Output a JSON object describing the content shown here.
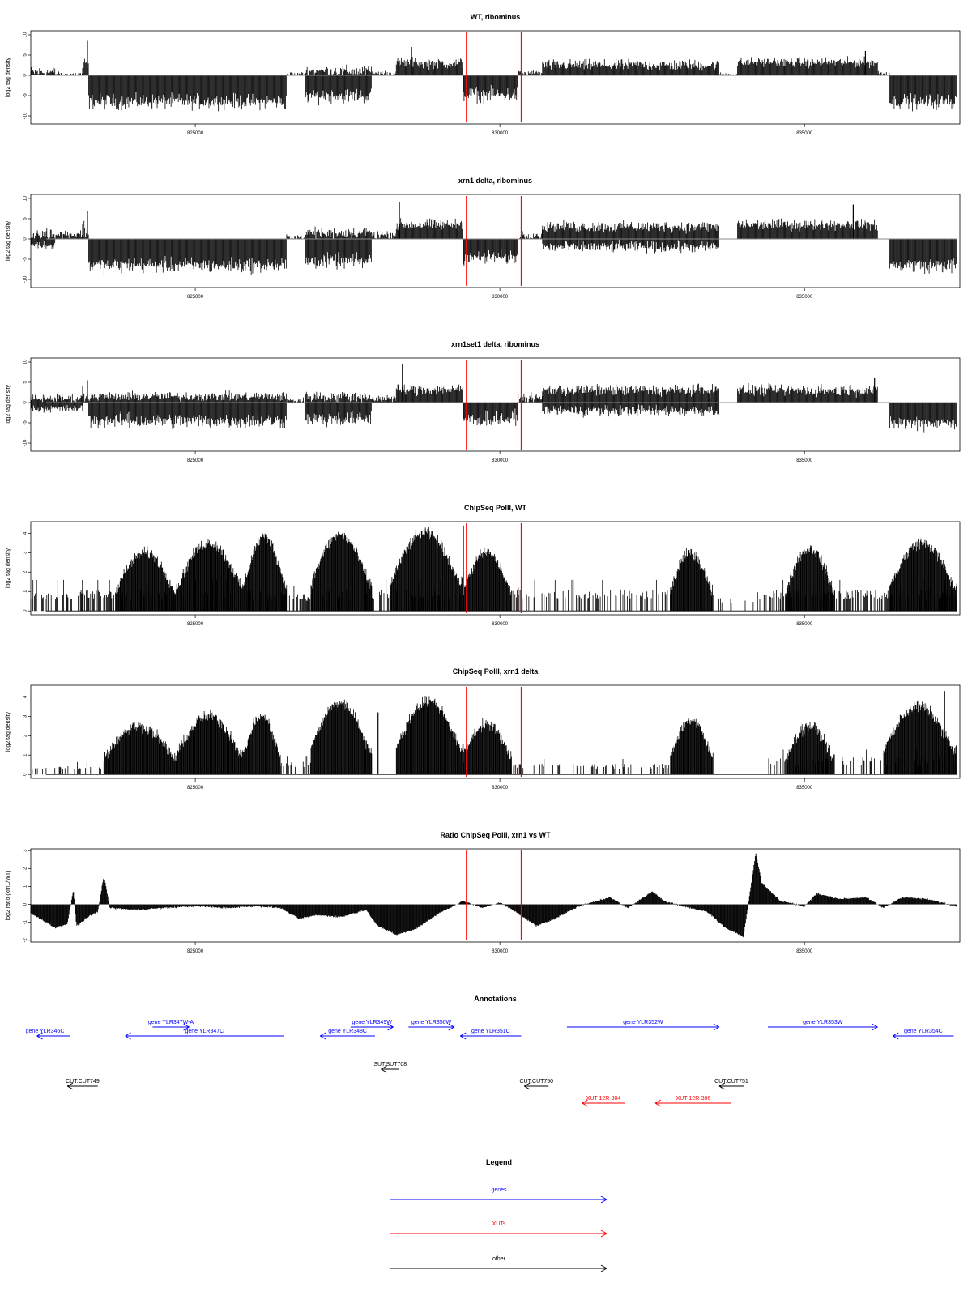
{
  "chart_data": [
    {
      "type": "bar",
      "title": "WT, ribominus",
      "ylabel": "log2 tag density",
      "xlabel": "",
      "xlim": [
        822300,
        837550
      ],
      "ylim": [
        -12,
        11
      ],
      "yticks": [
        -10,
        -5,
        0,
        5,
        10
      ],
      "xticks": [
        825000,
        830000,
        835000
      ],
      "mode": "signed",
      "vlines": [
        829450,
        830350
      ],
      "segments": [
        [
          822300,
          822700,
          0.8,
          1.5
        ],
        [
          822700,
          823150,
          0.3,
          0.6
        ],
        [
          823150,
          823250,
          2.0,
          3.0
        ],
        [
          823250,
          826500,
          -6.5,
          2.0
        ],
        [
          826500,
          826800,
          0.3,
          0.6
        ],
        [
          826800,
          827900,
          1.0,
          1.5
        ],
        [
          826800,
          827900,
          -5.0,
          2.0
        ],
        [
          827900,
          828300,
          0.5,
          0.8
        ],
        [
          828300,
          829400,
          3.0,
          1.5
        ],
        [
          829400,
          830300,
          -4.8,
          2.0
        ],
        [
          830300,
          830700,
          0.5,
          0.8
        ],
        [
          830700,
          833600,
          2.5,
          1.5
        ],
        [
          833600,
          833900,
          0.3,
          0.5
        ],
        [
          833900,
          836200,
          3.2,
          1.3
        ],
        [
          836200,
          836400,
          0.5,
          0.8
        ],
        [
          836400,
          837500,
          -6.5,
          2.0
        ]
      ],
      "peaks": [
        [
          823230,
          8.5
        ],
        [
          828550,
          7.0
        ],
        [
          836000,
          6.0
        ]
      ]
    },
    {
      "type": "bar",
      "title": "xrn1 delta, ribominus",
      "ylabel": "log2 tag density",
      "xlabel": "",
      "xlim": [
        822300,
        837550
      ],
      "ylim": [
        -12,
        11
      ],
      "yticks": [
        -10,
        -5,
        0,
        5,
        10
      ],
      "xticks": [
        825000,
        830000,
        835000
      ],
      "mode": "signed",
      "vlines": [
        829450,
        830350
      ],
      "segments": [
        [
          822300,
          822700,
          1.0,
          1.5
        ],
        [
          822300,
          822700,
          -1.5,
          1.0
        ],
        [
          822700,
          823150,
          1.2,
          1.2
        ],
        [
          823150,
          823250,
          2.0,
          3.0
        ],
        [
          823250,
          826500,
          -6.5,
          2.0
        ],
        [
          826500,
          826800,
          0.5,
          0.8
        ],
        [
          826800,
          827900,
          1.5,
          1.5
        ],
        [
          826800,
          827900,
          -5.5,
          2.0
        ],
        [
          827900,
          828300,
          1.0,
          1.2
        ],
        [
          828300,
          829400,
          3.5,
          1.5
        ],
        [
          829400,
          830300,
          -4.5,
          2.0
        ],
        [
          830300,
          830700,
          1.0,
          1.2
        ],
        [
          830700,
          833600,
          3.0,
          1.5
        ],
        [
          830700,
          833600,
          -2.0,
          1.5
        ],
        [
          833900,
          836200,
          3.5,
          1.5
        ],
        [
          836400,
          837500,
          -6.5,
          2.0
        ]
      ],
      "peaks": [
        [
          823230,
          7.0
        ],
        [
          828350,
          9.0
        ],
        [
          835800,
          8.5
        ]
      ]
    },
    {
      "type": "bar",
      "title": "xrn1set1 delta, ribominus",
      "ylabel": "log2 tag density",
      "xlabel": "",
      "xlim": [
        822300,
        837550
      ],
      "ylim": [
        -12,
        11
      ],
      "yticks": [
        -10,
        -5,
        0,
        5,
        10
      ],
      "xticks": [
        825000,
        830000,
        835000
      ],
      "mode": "signed",
      "vlines": [
        829450,
        830350
      ],
      "segments": [
        [
          822300,
          823150,
          1.0,
          1.2
        ],
        [
          822300,
          823150,
          -1.5,
          1.0
        ],
        [
          823150,
          823250,
          2.0,
          3.0
        ],
        [
          823250,
          826500,
          -4.5,
          2.0
        ],
        [
          823250,
          826500,
          1.5,
          1.2
        ],
        [
          826500,
          826800,
          0.5,
          0.8
        ],
        [
          826800,
          827900,
          1.5,
          1.5
        ],
        [
          826800,
          827900,
          -4.0,
          2.0
        ],
        [
          827900,
          828300,
          1.0,
          1.2
        ],
        [
          828300,
          829400,
          3.2,
          1.5
        ],
        [
          829400,
          830300,
          -4.0,
          2.0
        ],
        [
          830300,
          830700,
          1.0,
          1.2
        ],
        [
          830700,
          833600,
          3.0,
          1.5
        ],
        [
          830700,
          833600,
          -2.0,
          1.5
        ],
        [
          833900,
          836200,
          3.0,
          1.5
        ],
        [
          836400,
          837500,
          -5.0,
          2.0
        ]
      ],
      "peaks": [
        [
          823230,
          5.5
        ],
        [
          828400,
          9.5
        ],
        [
          836150,
          6.0
        ]
      ]
    },
    {
      "type": "bar",
      "title": "ChipSeq PolII, WT",
      "ylabel": "log2 tag density",
      "xlabel": "",
      "xlim": [
        822300,
        837550
      ],
      "ylim": [
        -0.2,
        4.6
      ],
      "yticks": [
        0,
        1,
        2,
        3,
        4
      ],
      "xticks": [
        825000,
        830000,
        835000
      ],
      "mode": "positive",
      "vlines": [
        829450,
        830350
      ],
      "bumps": [
        [
          823700,
          824700,
          3.0
        ],
        [
          824700,
          825800,
          3.5
        ],
        [
          825800,
          826500,
          3.8
        ],
        [
          826900,
          827900,
          3.9
        ],
        [
          828200,
          829400,
          4.0
        ],
        [
          829400,
          830200,
          3.0
        ],
        [
          832800,
          833500,
          3.0
        ],
        [
          834700,
          835500,
          3.2
        ],
        [
          836400,
          837500,
          3.5
        ]
      ],
      "floors": [
        [
          822300,
          823700,
          1.0,
          0.5
        ],
        [
          823700,
          826500,
          1.0,
          0.4
        ],
        [
          826500,
          826900,
          0.8,
          0.4
        ],
        [
          826900,
          829400,
          1.0,
          0.4
        ],
        [
          830200,
          832800,
          1.0,
          0.3
        ],
        [
          833500,
          834300,
          0.6,
          0.15
        ],
        [
          834300,
          836400,
          1.0,
          0.5
        ],
        [
          836400,
          837500,
          1.0,
          0.4
        ]
      ],
      "peaks": [
        [
          823150,
          1.6
        ],
        [
          829400,
          4.4
        ],
        [
          830300,
          1.2
        ]
      ]
    },
    {
      "type": "bar",
      "title": "ChipSeq PolII, xrn1 delta",
      "ylabel": "log2 tag density",
      "xlabel": "",
      "xlim": [
        822300,
        837550
      ],
      "ylim": [
        -0.2,
        4.6
      ],
      "yticks": [
        0,
        1,
        2,
        3,
        4
      ],
      "xticks": [
        825000,
        830000,
        835000
      ],
      "mode": "positive",
      "vlines": [
        829450,
        830350
      ],
      "bumps": [
        [
          823500,
          824700,
          2.5
        ],
        [
          824700,
          825800,
          3.0
        ],
        [
          825800,
          826400,
          3.0
        ],
        [
          826900,
          827900,
          3.7
        ],
        [
          828300,
          829400,
          3.8
        ],
        [
          829400,
          830200,
          2.6
        ],
        [
          832800,
          833500,
          2.8
        ],
        [
          834700,
          835500,
          2.5
        ],
        [
          836300,
          837500,
          3.5
        ]
      ],
      "floors": [
        [
          822300,
          823500,
          0.4,
          0.2
        ],
        [
          826400,
          826900,
          0.6,
          0.3
        ],
        [
          830200,
          832800,
          0.5,
          0.3
        ],
        [
          834400,
          836300,
          0.8,
          0.3
        ],
        [
          836300,
          837500,
          0.8,
          0.3
        ]
      ],
      "peaks": [
        [
          828000,
          3.2
        ],
        [
          837300,
          4.3
        ]
      ]
    },
    {
      "type": "area",
      "title": "Ratio ChipSeq PolII, xrn1 vs WT",
      "ylabel": "log2 ratio (xrn1/WT)",
      "xlabel": "",
      "xlim": [
        822300,
        837550
      ],
      "ylim": [
        -2.1,
        3.1
      ],
      "yticks": [
        -2,
        -1,
        0,
        1,
        2,
        3
      ],
      "xticks": [
        825000,
        830000,
        835000
      ],
      "mode": "area",
      "vlines": [
        829450,
        830350
      ],
      "points": [
        [
          822300,
          -0.5
        ],
        [
          822500,
          -0.9
        ],
        [
          822700,
          -1.3
        ],
        [
          822900,
          -1.1
        ],
        [
          823000,
          0.8
        ],
        [
          823050,
          -1.2
        ],
        [
          823200,
          -0.8
        ],
        [
          823400,
          -0.4
        ],
        [
          823500,
          1.6
        ],
        [
          823600,
          -0.2
        ],
        [
          824000,
          -0.3
        ],
        [
          824500,
          -0.2
        ],
        [
          825000,
          -0.1
        ],
        [
          825500,
          -0.2
        ],
        [
          826000,
          -0.1
        ],
        [
          826400,
          -0.2
        ],
        [
          826700,
          -0.8
        ],
        [
          827000,
          -0.6
        ],
        [
          827400,
          -0.7
        ],
        [
          827800,
          -0.3
        ],
        [
          828000,
          -1.2
        ],
        [
          828300,
          -1.7
        ],
        [
          828600,
          -1.4
        ],
        [
          829000,
          -0.5
        ],
        [
          829400,
          0.2
        ],
        [
          829700,
          -0.2
        ],
        [
          830000,
          0.1
        ],
        [
          830300,
          -0.5
        ],
        [
          830600,
          -1.2
        ],
        [
          830900,
          -0.8
        ],
        [
          831300,
          -0.1
        ],
        [
          831800,
          0.4
        ],
        [
          832100,
          -0.2
        ],
        [
          832500,
          0.7
        ],
        [
          832700,
          0.2
        ],
        [
          833000,
          -0.1
        ],
        [
          833400,
          -0.4
        ],
        [
          833700,
          -1.3
        ],
        [
          834000,
          -1.8
        ],
        [
          834200,
          2.9
        ],
        [
          834300,
          1.2
        ],
        [
          834600,
          0.2
        ],
        [
          835000,
          -0.1
        ],
        [
          835200,
          0.6
        ],
        [
          835600,
          0.3
        ],
        [
          836000,
          0.4
        ],
        [
          836300,
          -0.2
        ],
        [
          836600,
          0.4
        ],
        [
          837000,
          0.3
        ],
        [
          837500,
          -0.1
        ]
      ]
    }
  ],
  "annotations": {
    "title": "Annotations",
    "features": [
      {
        "label": "gene YLR346C",
        "kind": "gene",
        "start": 822400,
        "end": 822950,
        "dir": "left",
        "row": 1,
        "label_side": "left"
      },
      {
        "label": "gene YLR347W-A",
        "kind": "gene",
        "start": 824300,
        "end": 824900,
        "dir": "right",
        "row": 0,
        "label_side": "center"
      },
      {
        "label": "gene YLR347C",
        "kind": "gene",
        "start": 823850,
        "end": 826450,
        "dir": "left",
        "row": 1,
        "label_side": "center"
      },
      {
        "label": "gene YLR348C",
        "kind": "gene",
        "start": 827050,
        "end": 827950,
        "dir": "left",
        "row": 1,
        "label_side": "center"
      },
      {
        "label": "gene YLR349W",
        "kind": "gene",
        "start": 827550,
        "end": 828250,
        "dir": "right",
        "row": 0,
        "label_side": "center"
      },
      {
        "label": "gene YLR350W",
        "kind": "gene",
        "start": 828500,
        "end": 829250,
        "dir": "right",
        "row": 0,
        "label_side": "center"
      },
      {
        "label": "gene YLR351C",
        "kind": "gene",
        "start": 829350,
        "end": 830350,
        "dir": "left",
        "row": 1,
        "label_side": "center"
      },
      {
        "label": "gene YLR352W",
        "kind": "gene",
        "start": 831100,
        "end": 833600,
        "dir": "right",
        "row": 0,
        "label_side": "center"
      },
      {
        "label": "gene YLR353W",
        "kind": "gene",
        "start": 834400,
        "end": 836200,
        "dir": "right",
        "row": 0,
        "label_side": "center"
      },
      {
        "label": "gene YLR354C",
        "kind": "gene",
        "start": 836450,
        "end": 837450,
        "dir": "left",
        "row": 1,
        "label_side": "center"
      },
      {
        "label": "SUT.SUT708",
        "kind": "other",
        "start": 828050,
        "end": 828350,
        "dir": "left",
        "row": 2,
        "label_side": "center"
      },
      {
        "label": "CUT.CUT749",
        "kind": "other",
        "start": 822900,
        "end": 823400,
        "dir": "left",
        "row": 3,
        "label_side": "center"
      },
      {
        "label": "CUT.CUT750",
        "kind": "other",
        "start": 830400,
        "end": 830800,
        "dir": "left",
        "row": 3,
        "label_side": "center"
      },
      {
        "label": "CUT.CUT751",
        "kind": "other",
        "start": 833600,
        "end": 834000,
        "dir": "left",
        "row": 3,
        "label_side": "center"
      },
      {
        "label": "XUT 12R-304",
        "kind": "xut",
        "start": 831350,
        "end": 832050,
        "dir": "left",
        "row": 4,
        "label_side": "center"
      },
      {
        "label": "XUT 12R-306",
        "kind": "xut",
        "start": 832550,
        "end": 833800,
        "dir": "left",
        "row": 4,
        "label_side": "center"
      }
    ]
  },
  "legend": {
    "title": "Legend",
    "items": [
      {
        "label": "genes",
        "kind": "gene"
      },
      {
        "label": "XUTs",
        "kind": "xut"
      },
      {
        "label": "other",
        "kind": "other"
      }
    ]
  },
  "colors": {
    "gene": "#0000ff",
    "xut": "#ff0000",
    "other": "#000000",
    "marker": "#ff0000",
    "bars": "#000000"
  }
}
